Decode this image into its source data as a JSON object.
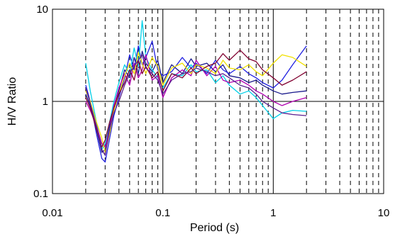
{
  "chart_data": {
    "type": "line",
    "title": "",
    "xlabel": "Period (s)",
    "ylabel": "H/V Ratio",
    "xscale": "log",
    "yscale": "log",
    "xlim": [
      0.01,
      10
    ],
    "ylim": [
      0.1,
      10
    ],
    "xticks": [
      {
        "value": 0.01,
        "label": "0.01"
      },
      {
        "value": 0.1,
        "label": "0.1"
      },
      {
        "value": 1,
        "label": "1"
      },
      {
        "value": 10,
        "label": "10"
      }
    ],
    "yticks": [
      {
        "value": 0.1,
        "label": "0.1"
      },
      {
        "value": 1,
        "label": "1"
      },
      {
        "value": 10,
        "label": "10"
      }
    ],
    "grid": {
      "major": "solid",
      "minor": "dashed",
      "minor_x_only": true
    },
    "legend": "none",
    "colors": {
      "navy": "#1a1a8c",
      "blue": "#2020e0",
      "cyan": "#00d0e8",
      "magenta": "#b000b0",
      "yellow": "#f0e000",
      "maroon": "#800030",
      "purple": "#5a2090"
    },
    "series": [
      {
        "color": "#1a1a8c",
        "x": [
          0.02,
          0.022,
          0.025,
          0.028,
          0.03,
          0.033,
          0.036,
          0.04,
          0.045,
          0.05,
          0.055,
          0.06,
          0.065,
          0.07,
          0.08,
          0.09,
          0.1,
          0.12,
          0.15,
          0.18,
          0.2,
          0.25,
          0.3,
          0.35,
          0.4,
          0.5,
          0.6,
          0.7,
          0.8,
          1.0,
          1.2,
          1.5,
          2.0
        ],
        "y": [
          1.2,
          0.9,
          0.5,
          0.28,
          0.3,
          0.55,
          0.8,
          1.3,
          2.2,
          1.8,
          3.0,
          2.0,
          3.5,
          2.6,
          2.1,
          2.8,
          1.6,
          2.5,
          2.0,
          2.9,
          2.4,
          2.6,
          2.1,
          2.5,
          1.9,
          1.8,
          1.6,
          1.7,
          1.5,
          1.3,
          1.2,
          1.25,
          1.3
        ]
      },
      {
        "color": "#2020e0",
        "x": [
          0.02,
          0.022,
          0.025,
          0.028,
          0.03,
          0.033,
          0.036,
          0.04,
          0.045,
          0.05,
          0.055,
          0.06,
          0.065,
          0.07,
          0.08,
          0.09,
          0.1,
          0.12,
          0.15,
          0.18,
          0.2,
          0.25,
          0.3,
          0.35,
          0.4,
          0.5,
          0.6,
          0.7,
          0.8,
          1.0,
          1.2,
          1.5,
          2.0
        ],
        "y": [
          1.5,
          1.0,
          0.45,
          0.24,
          0.22,
          0.4,
          0.7,
          1.1,
          1.8,
          3.2,
          2.2,
          4.0,
          2.5,
          3.0,
          4.5,
          2.2,
          1.9,
          2.1,
          3.0,
          2.3,
          2.6,
          2.0,
          2.8,
          2.2,
          2.0,
          2.4,
          2.0,
          1.8,
          1.6,
          1.4,
          1.7,
          2.5,
          4.0
        ]
      },
      {
        "color": "#00d0e8",
        "x": [
          0.02,
          0.022,
          0.025,
          0.028,
          0.03,
          0.033,
          0.036,
          0.04,
          0.045,
          0.05,
          0.055,
          0.06,
          0.065,
          0.07,
          0.08,
          0.09,
          0.1,
          0.12,
          0.15,
          0.18,
          0.2,
          0.25,
          0.3,
          0.35,
          0.4,
          0.5,
          0.6,
          0.7,
          0.8,
          1.0,
          1.2,
          1.5,
          2.0
        ],
        "y": [
          2.6,
          1.3,
          0.6,
          0.3,
          0.35,
          0.6,
          1.0,
          1.6,
          2.5,
          2.0,
          3.8,
          2.4,
          7.5,
          3.0,
          2.2,
          1.8,
          1.4,
          2.0,
          1.9,
          2.5,
          2.1,
          2.2,
          1.6,
          1.9,
          1.5,
          1.2,
          1.3,
          1.1,
          0.9,
          0.65,
          0.75,
          0.8,
          0.78
        ]
      },
      {
        "color": "#b000b0",
        "x": [
          0.02,
          0.022,
          0.025,
          0.028,
          0.03,
          0.033,
          0.036,
          0.04,
          0.045,
          0.05,
          0.055,
          0.06,
          0.065,
          0.07,
          0.08,
          0.09,
          0.1,
          0.12,
          0.15,
          0.18,
          0.2,
          0.25,
          0.3,
          0.35,
          0.4,
          0.5,
          0.6,
          0.7,
          0.8,
          1.0,
          1.2,
          1.5,
          2.0
        ],
        "y": [
          1.0,
          0.8,
          0.55,
          0.35,
          0.32,
          0.5,
          0.9,
          1.4,
          2.0,
          1.5,
          2.6,
          1.8,
          2.2,
          3.2,
          1.7,
          1.9,
          1.1,
          1.8,
          2.2,
          1.9,
          2.8,
          1.9,
          2.4,
          1.7,
          1.6,
          1.7,
          1.5,
          1.3,
          1.2,
          1.0,
          0.9,
          1.0,
          1.1
        ]
      },
      {
        "color": "#f0e000",
        "x": [
          0.02,
          0.022,
          0.025,
          0.028,
          0.03,
          0.033,
          0.036,
          0.04,
          0.045,
          0.05,
          0.055,
          0.06,
          0.065,
          0.07,
          0.08,
          0.09,
          0.1,
          0.12,
          0.15,
          0.18,
          0.2,
          0.25,
          0.3,
          0.35,
          0.4,
          0.5,
          0.6,
          0.7,
          0.8,
          1.0,
          1.2,
          1.5,
          2.0
        ],
        "y": [
          1.3,
          1.0,
          0.6,
          0.4,
          0.28,
          0.45,
          0.8,
          1.2,
          1.9,
          2.6,
          2.0,
          3.4,
          2.6,
          2.0,
          3.0,
          2.4,
          1.5,
          2.3,
          2.6,
          2.0,
          2.5,
          2.3,
          2.0,
          2.8,
          2.3,
          2.2,
          2.5,
          2.1,
          1.9,
          2.6,
          3.2,
          3.0,
          2.4
        ]
      },
      {
        "color": "#800030",
        "x": [
          0.02,
          0.022,
          0.025,
          0.028,
          0.03,
          0.033,
          0.036,
          0.04,
          0.045,
          0.05,
          0.055,
          0.06,
          0.065,
          0.07,
          0.08,
          0.09,
          0.1,
          0.12,
          0.15,
          0.18,
          0.2,
          0.25,
          0.3,
          0.35,
          0.4,
          0.5,
          0.6,
          0.7,
          0.8,
          1.0,
          1.2,
          1.5,
          2.0
        ],
        "y": [
          1.1,
          0.85,
          0.5,
          0.32,
          0.38,
          0.6,
          0.85,
          1.2,
          1.6,
          2.2,
          1.7,
          2.8,
          2.0,
          2.4,
          1.8,
          2.1,
          1.3,
          2.0,
          1.8,
          2.3,
          2.0,
          2.4,
          2.6,
          3.3,
          2.8,
          3.6,
          2.9,
          2.7,
          2.2,
          1.8,
          1.5,
          1.7,
          2.1
        ]
      },
      {
        "color": "#5a2090",
        "x": [
          0.02,
          0.022,
          0.025,
          0.028,
          0.03,
          0.033,
          0.036,
          0.04,
          0.045,
          0.05,
          0.055,
          0.06,
          0.065,
          0.07,
          0.08,
          0.09,
          0.1,
          0.12,
          0.15,
          0.18,
          0.2,
          0.25,
          0.3,
          0.35,
          0.4,
          0.5,
          0.6,
          0.7,
          0.8,
          1.0,
          1.2,
          1.5,
          2.0
        ],
        "y": [
          1.4,
          0.95,
          0.55,
          0.3,
          0.26,
          0.5,
          0.75,
          1.0,
          1.5,
          2.0,
          2.4,
          2.8,
          3.2,
          2.3,
          2.0,
          1.7,
          1.2,
          1.7,
          2.0,
          2.1,
          2.3,
          2.1,
          1.9,
          2.0,
          1.8,
          1.5,
          1.4,
          1.2,
          1.0,
          0.85,
          0.75,
          0.72,
          0.7
        ]
      }
    ]
  }
}
